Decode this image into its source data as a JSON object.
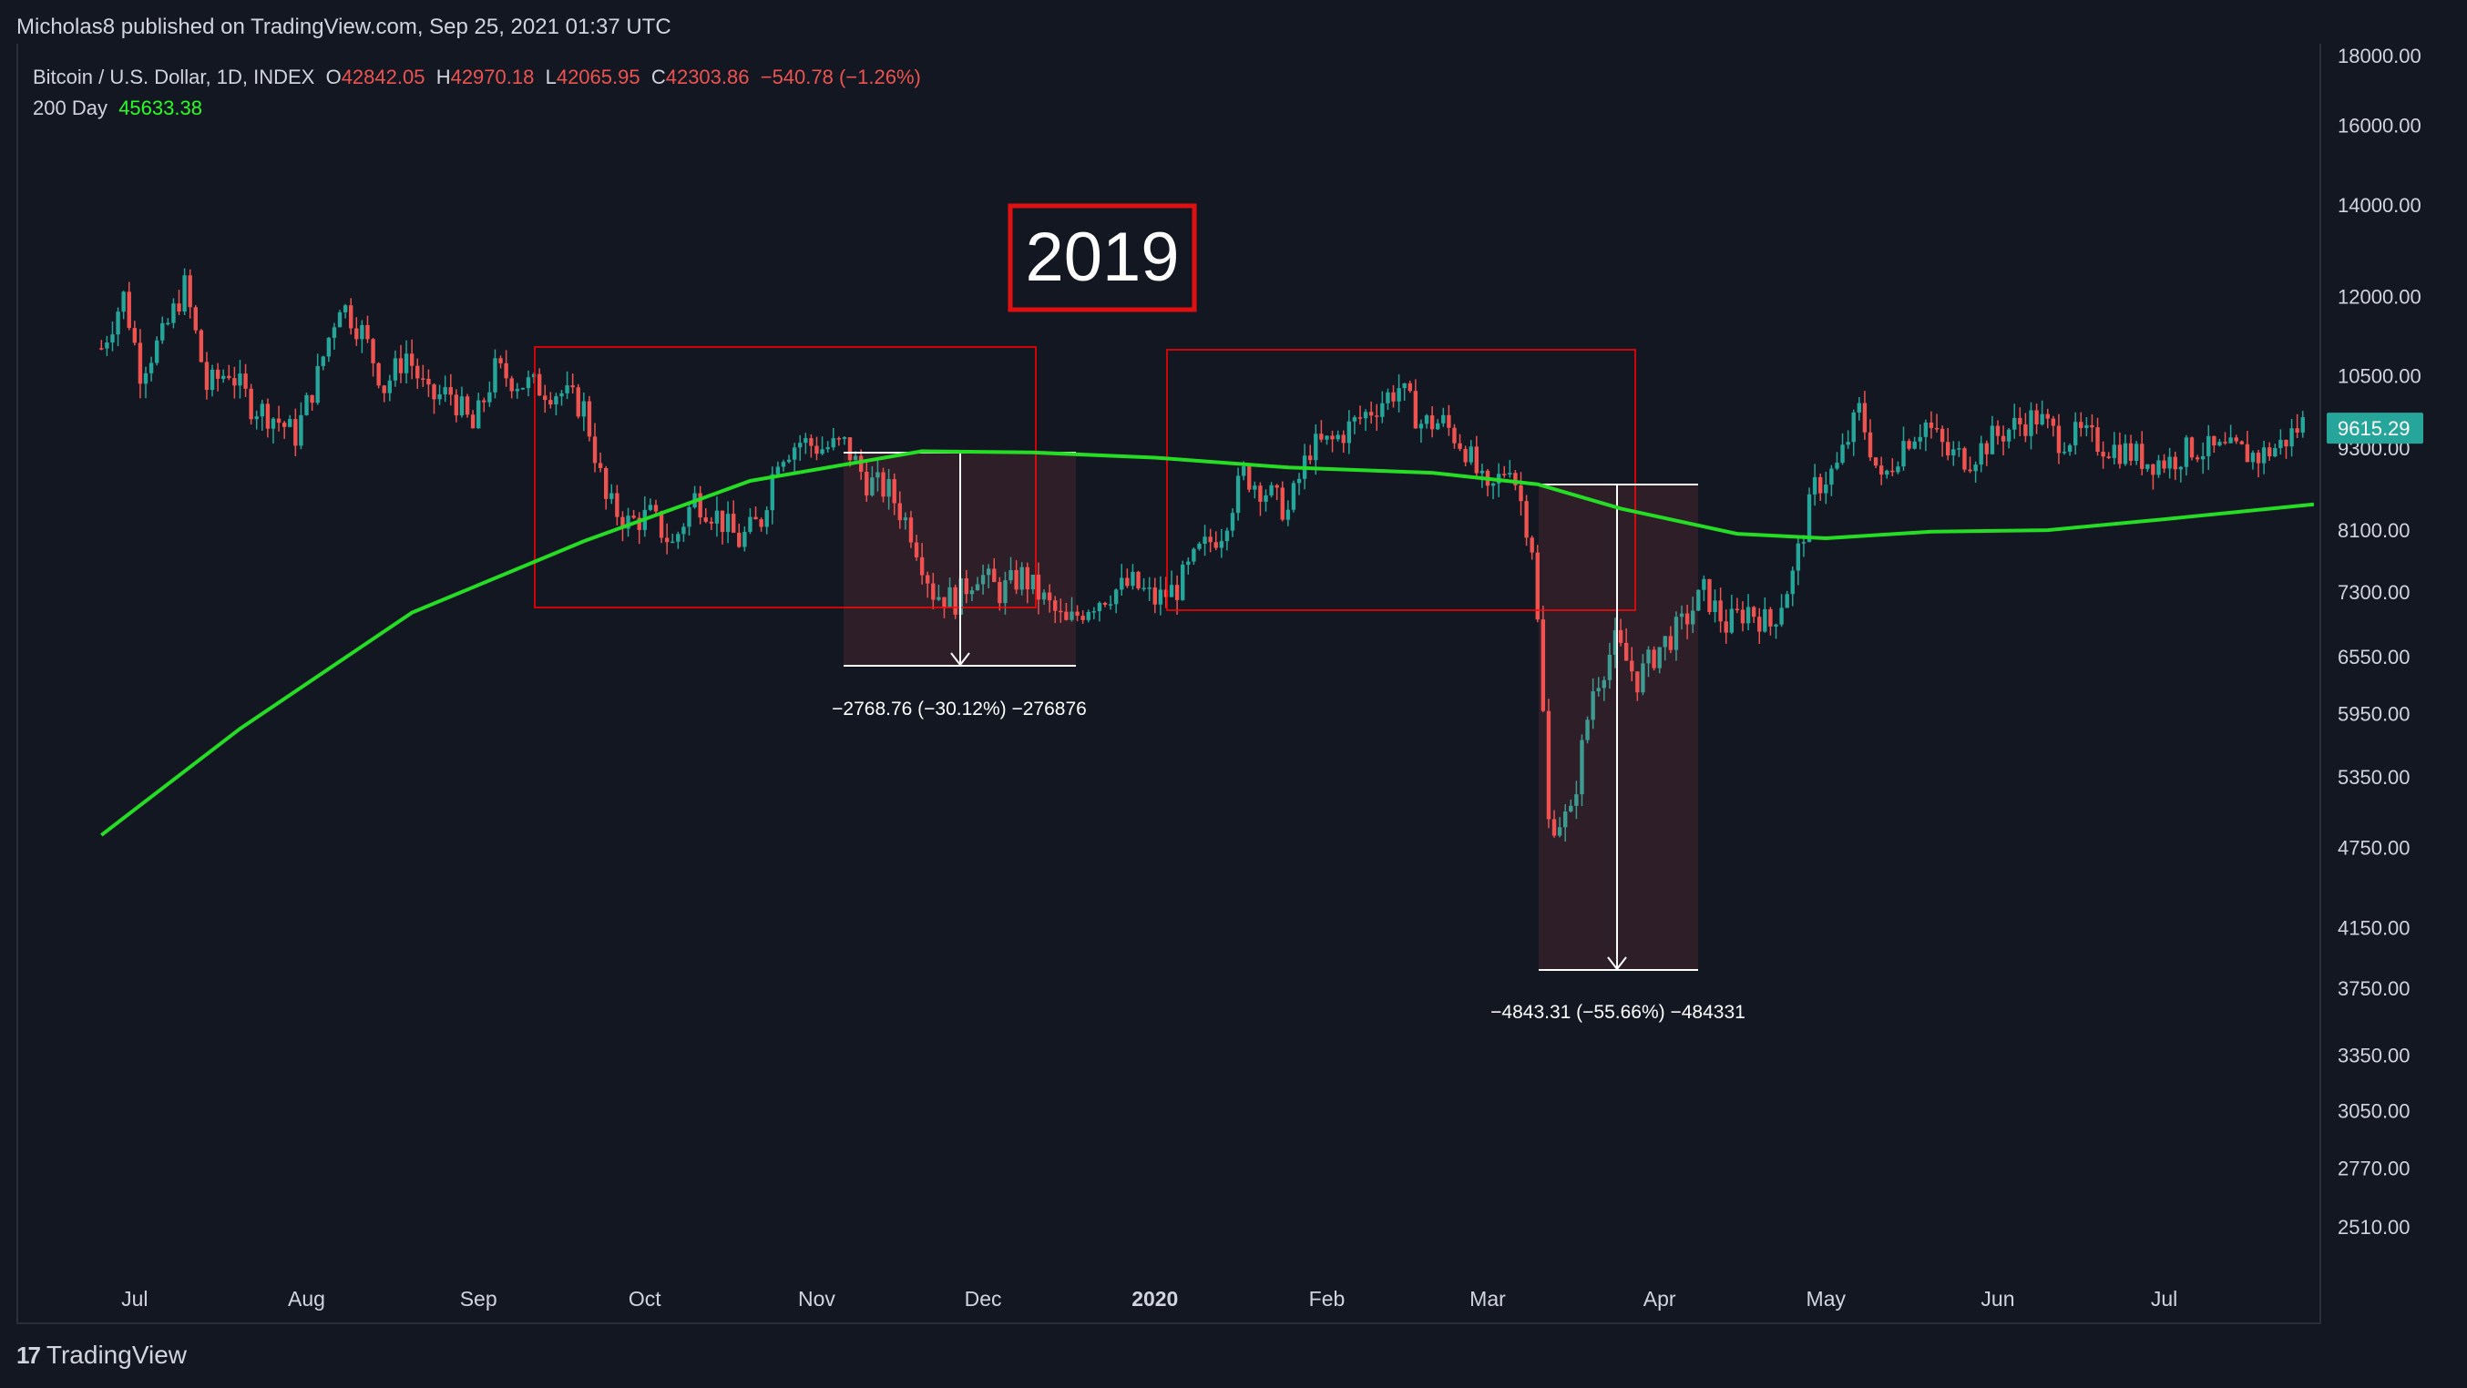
{
  "header": {
    "published": "Micholas8 published on TradingView.com, Sep 25, 2021 01:37 UTC"
  },
  "legend": {
    "symbol": "Bitcoin / U.S. Dollar, 1D, INDEX",
    "o_label": "O",
    "o_value": "42842.05",
    "h_label": "H",
    "h_value": "42970.18",
    "l_label": "L",
    "l_value": "42065.95",
    "c_label": "C",
    "c_value": "42303.86",
    "change": "−540.78 (−1.26%)",
    "ma_label": "200 Day",
    "ma_value": "45633.38"
  },
  "annotations": {
    "year_label": "2019",
    "measure1": "−2768.76 (−30.12%) −276876",
    "measure2": "−4843.31 (−55.66%) −484331",
    "price_tag": "9615.29"
  },
  "footer": {
    "brand": "TradingView"
  },
  "colors": {
    "bg": "#131722",
    "up": "#26a69a",
    "down": "#ef5350",
    "ma": "#26dd26",
    "box": "#ff0000",
    "grid": "#2a2e39"
  },
  "chart_data": {
    "type": "line",
    "title": "Bitcoin / U.S. Dollar, 1D, INDEX",
    "y_scale": "log",
    "ylim": [
      2300,
      18300
    ],
    "y_ticks": [
      18000,
      16000,
      14000,
      12000,
      10500,
      9300,
      8100,
      7300,
      6550,
      5950,
      5350,
      4750,
      4150,
      3750,
      3350,
      3050,
      2770,
      2510
    ],
    "y_tick_labels": [
      "18000.00",
      "16000.00",
      "14000.00",
      "12000.00",
      "10500.00",
      "9300.00",
      "8100.00",
      "7300.00",
      "6550.00",
      "5950.00",
      "5350.00",
      "4750.00",
      "4150.00",
      "3750.00",
      "3350.00",
      "3050.00",
      "2770.00",
      "2510.00"
    ],
    "x_ticks": [
      "Jul",
      "Aug",
      "Sep",
      "Oct",
      "Nov",
      "Dec",
      "2020",
      "Feb",
      "Mar",
      "Apr",
      "May",
      "Jun",
      "Jul"
    ],
    "x_tick_dates": [
      "2019-07-01",
      "2019-08-01",
      "2019-09-01",
      "2019-10-01",
      "2019-11-01",
      "2019-12-01",
      "2020-01-01",
      "2020-02-01",
      "2020-03-01",
      "2020-04-01",
      "2020-05-01",
      "2020-06-01",
      "2020-07-01"
    ],
    "series": [
      {
        "name": "Bitcoin / U.S. Dollar",
        "x": [
          "2019-06-25",
          "2019-06-29",
          "2019-07-02",
          "2019-07-06",
          "2019-07-10",
          "2019-07-14",
          "2019-07-18",
          "2019-07-22",
          "2019-07-26",
          "2019-07-30",
          "2019-08-03",
          "2019-08-07",
          "2019-08-11",
          "2019-08-15",
          "2019-08-19",
          "2019-08-23",
          "2019-08-27",
          "2019-08-31",
          "2019-09-04",
          "2019-09-08",
          "2019-09-12",
          "2019-09-16",
          "2019-09-20",
          "2019-09-24",
          "2019-09-28",
          "2019-10-02",
          "2019-10-06",
          "2019-10-10",
          "2019-10-14",
          "2019-10-18",
          "2019-10-22",
          "2019-10-25",
          "2019-10-29",
          "2019-11-02",
          "2019-11-06",
          "2019-11-10",
          "2019-11-14",
          "2019-11-18",
          "2019-11-22",
          "2019-11-26",
          "2019-11-30",
          "2019-12-04",
          "2019-12-08",
          "2019-12-12",
          "2019-12-16",
          "2019-12-20",
          "2019-12-24",
          "2019-12-28",
          "2020-01-01",
          "2020-01-05",
          "2020-01-09",
          "2020-01-13",
          "2020-01-17",
          "2020-01-21",
          "2020-01-25",
          "2020-01-29",
          "2020-02-02",
          "2020-02-06",
          "2020-02-10",
          "2020-02-14",
          "2020-02-18",
          "2020-02-22",
          "2020-02-26",
          "2020-03-01",
          "2020-03-05",
          "2020-03-09",
          "2020-03-12",
          "2020-03-16",
          "2020-03-20",
          "2020-03-24",
          "2020-03-28",
          "2020-04-01",
          "2020-04-05",
          "2020-04-09",
          "2020-04-13",
          "2020-04-17",
          "2020-04-21",
          "2020-04-25",
          "2020-04-29",
          "2020-05-03",
          "2020-05-07",
          "2020-05-11",
          "2020-05-15",
          "2020-05-19",
          "2020-05-23",
          "2020-05-27",
          "2020-05-31",
          "2020-06-04",
          "2020-06-08",
          "2020-06-12",
          "2020-06-16",
          "2020-06-20",
          "2020-06-24",
          "2020-06-28",
          "2020-07-02",
          "2020-07-06",
          "2020-07-10",
          "2020-07-14",
          "2020-07-18",
          "2020-07-22",
          "2020-07-26"
        ],
        "close": [
          11000,
          12000,
          10600,
          11200,
          12200,
          10300,
          10600,
          10000,
          9800,
          9500,
          10500,
          11900,
          11300,
          10300,
          10900,
          10100,
          10200,
          9600,
          10600,
          10400,
          10300,
          10200,
          9950,
          8500,
          8200,
          8300,
          7900,
          8550,
          8300,
          7950,
          8250,
          9200,
          9400,
          9300,
          9350,
          8800,
          8650,
          8100,
          7300,
          7200,
          7550,
          7300,
          7500,
          7200,
          6900,
          7150,
          7300,
          7400,
          7200,
          7350,
          7800,
          8100,
          8900,
          8650,
          8350,
          9300,
          9400,
          9700,
          10000,
          10300,
          9700,
          9700,
          9300,
          8550,
          9100,
          7900,
          4950,
          5000,
          6200,
          6700,
          6300,
          6650,
          6900,
          7300,
          6900,
          7100,
          6900,
          7500,
          8700,
          9000,
          9900,
          8750,
          9400,
          9700,
          9200,
          9150,
          9450,
          9650,
          9800,
          9450,
          9500,
          9350,
          9250,
          9100,
          9100,
          9300,
          9250,
          9250,
          9170,
          9350,
          9700
        ]
      },
      {
        "name": "200 Day",
        "x": [
          "2019-06-25",
          "2019-07-20",
          "2019-08-20",
          "2019-09-20",
          "2019-10-20",
          "2019-11-20",
          "2019-12-10",
          "2020-01-01",
          "2020-01-25",
          "2020-02-20",
          "2020-03-10",
          "2020-03-25",
          "2020-04-15",
          "2020-05-01",
          "2020-05-20",
          "2020-06-10",
          "2020-07-01",
          "2020-07-28"
        ],
        "values": [
          4850,
          5800,
          7050,
          7950,
          8800,
          9250,
          9230,
          9150,
          9000,
          8920,
          8750,
          8400,
          8050,
          7990,
          8080,
          8100,
          8250,
          8460
        ]
      }
    ]
  }
}
